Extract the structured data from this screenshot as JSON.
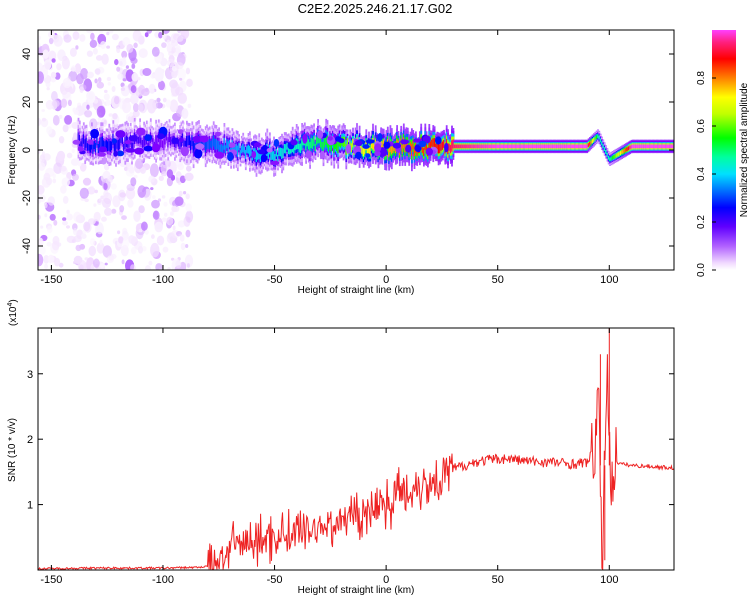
{
  "title": "C2E2.2025.246.21.17.G02",
  "chart_data": [
    {
      "type": "heatmap",
      "title": "",
      "xlabel": "Height of straight line (km)",
      "ylabel": "Frequency (Hz)",
      "xlim": [
        -156,
        129
      ],
      "ylim": [
        -50,
        50
      ],
      "xticks": [
        -150,
        -100,
        -50,
        0,
        50,
        100
      ],
      "yticks": [
        -40,
        -20,
        0,
        20,
        40
      ],
      "colorbar": {
        "label": "Normalized spectral amplitude",
        "range": [
          0,
          1
        ],
        "ticks": [
          0.0,
          0.2,
          0.4,
          0.6,
          0.8
        ],
        "colormap": [
          "#ffffff",
          "#f0d8ff",
          "#c080ff",
          "#8000ff",
          "#0000ff",
          "#00c0ff",
          "#00ffc0",
          "#00ff00",
          "#c0ff00",
          "#ffff00",
          "#ff8000",
          "#ff0000",
          "#ff40ff"
        ]
      },
      "track": [
        {
          "x": -138,
          "f": 3,
          "a": 0.3
        },
        {
          "x": -130,
          "f": 2,
          "a": 0.35
        },
        {
          "x": -100,
          "f": 4,
          "a": 0.25
        },
        {
          "x": -85,
          "f": 3,
          "a": 0.35
        },
        {
          "x": -70,
          "f": 1,
          "a": 0.4
        },
        {
          "x": -60,
          "f": -1,
          "a": 0.42
        },
        {
          "x": -50,
          "f": -2,
          "a": 0.45
        },
        {
          "x": -40,
          "f": 2,
          "a": 0.5
        },
        {
          "x": -30,
          "f": 3,
          "a": 0.55
        },
        {
          "x": -20,
          "f": 2,
          "a": 0.6
        },
        {
          "x": -10,
          "f": 1,
          "a": 0.75
        },
        {
          "x": 0,
          "f": 1,
          "a": 0.8
        },
        {
          "x": 10,
          "f": 1,
          "a": 0.85
        },
        {
          "x": 20,
          "f": 1,
          "a": 0.9
        },
        {
          "x": 30,
          "f": 1.5,
          "a": 0.95
        },
        {
          "x": 50,
          "f": 1.5,
          "a": 1.0
        },
        {
          "x": 70,
          "f": 1.5,
          "a": 1.0
        },
        {
          "x": 90,
          "f": 1.5,
          "a": 1.0
        },
        {
          "x": 95,
          "f": 6,
          "a": 0.5
        },
        {
          "x": 100,
          "f": -4,
          "a": 0.5
        },
        {
          "x": 110,
          "f": 1.5,
          "a": 1.0
        },
        {
          "x": 129,
          "f": 1.5,
          "a": 1.0
        }
      ],
      "noise_region_x": [
        -156,
        -88
      ]
    },
    {
      "type": "line",
      "title": "",
      "xlabel": "Height of straight line (km)",
      "ylabel": "SNR (10 * v/v)",
      "multiplier": "(x10",
      "multiplier_exp": "4",
      "multiplier_close": ")",
      "xlim": [
        -156,
        129
      ],
      "ylim": [
        0,
        3.7
      ],
      "xticks": [
        -150,
        -100,
        -50,
        0,
        50,
        100
      ],
      "yticks": [
        1,
        2,
        3
      ],
      "color": "#ee2222",
      "series": [
        {
          "name": "SNR",
          "x": [
            -156,
            -130,
            -100,
            -85,
            -78,
            -75,
            -70,
            -65,
            -60,
            -55,
            -50,
            -45,
            -40,
            -35,
            -30,
            -25,
            -20,
            -15,
            -10,
            -5,
            0,
            5,
            10,
            15,
            20,
            25,
            30,
            35,
            40,
            45,
            50,
            55,
            60,
            65,
            70,
            75,
            80,
            85,
            90,
            93,
            95,
            96,
            97,
            98,
            99,
            100,
            101,
            102,
            105,
            110,
            120,
            129
          ],
          "y": [
            0.02,
            0.03,
            0.03,
            0.04,
            0.06,
            0.15,
            0.35,
            0.4,
            0.42,
            0.45,
            0.5,
            0.55,
            0.58,
            0.62,
            0.66,
            0.7,
            0.75,
            0.82,
            0.88,
            0.95,
            1.05,
            1.15,
            1.22,
            1.3,
            1.35,
            1.45,
            1.55,
            1.6,
            1.65,
            1.68,
            1.7,
            1.7,
            1.68,
            1.66,
            1.65,
            1.65,
            1.63,
            1.62,
            1.65,
            1.8,
            2.6,
            1.2,
            0.2,
            1.6,
            3.4,
            2.2,
            1.0,
            1.7,
            1.62,
            1.6,
            1.58,
            1.56
          ]
        }
      ],
      "spikes": [
        {
          "x": 96,
          "y": 3.3
        },
        {
          "x": 100,
          "y": 3.7
        },
        {
          "x": 98,
          "y": 0.15
        }
      ]
    }
  ]
}
